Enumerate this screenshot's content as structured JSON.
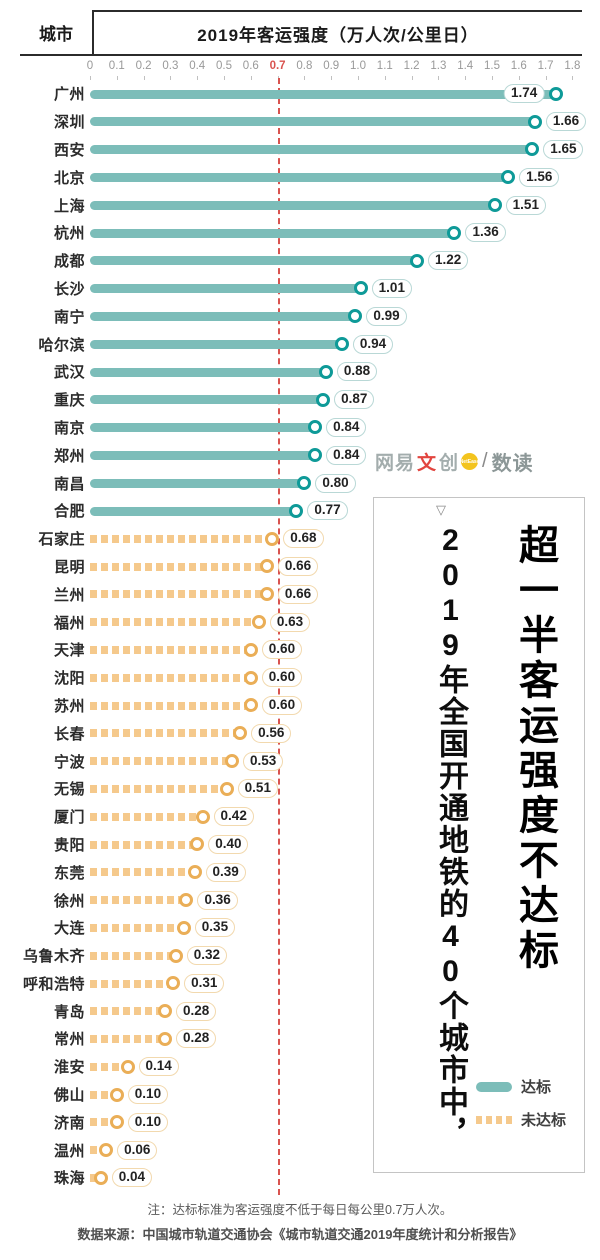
{
  "header": {
    "city_col": "城市",
    "title": "2019年客运强度（万人次/公里日）"
  },
  "axis": {
    "ticks": [
      "0",
      "0.1",
      "0.2",
      "0.3",
      "0.4",
      "0.5",
      "0.6",
      "0.7",
      "0.8",
      "0.9",
      "1.0",
      "1.1",
      "1.2",
      "1.3",
      "1.4",
      "1.5",
      "1.6",
      "1.7",
      "1.8"
    ],
    "threshold_tick": "0.7"
  },
  "chart_data": {
    "type": "bar",
    "orientation": "horizontal",
    "title": "2019年客运强度（万人次/公里日）",
    "xlim": [
      0,
      1.8
    ],
    "threshold": 0.7,
    "grid": false,
    "legend_position": "bottom-right",
    "categories": [
      "广州",
      "深圳",
      "西安",
      "北京",
      "上海",
      "杭州",
      "成都",
      "长沙",
      "南宁",
      "哈尔滨",
      "武汉",
      "重庆",
      "南京",
      "郑州",
      "南昌",
      "合肥",
      "石家庄",
      "昆明",
      "兰州",
      "福州",
      "天津",
      "沈阳",
      "苏州",
      "长春",
      "宁波",
      "无锡",
      "厦门",
      "贵阳",
      "东莞",
      "徐州",
      "大连",
      "乌鲁木齐",
      "呼和浩特",
      "青岛",
      "常州",
      "淮安",
      "佛山",
      "济南",
      "温州",
      "珠海"
    ],
    "values": [
      1.74,
      1.66,
      1.65,
      1.56,
      1.51,
      1.36,
      1.22,
      1.01,
      0.99,
      0.94,
      0.88,
      0.87,
      0.84,
      0.84,
      0.8,
      0.77,
      0.68,
      0.66,
      0.66,
      0.63,
      0.6,
      0.6,
      0.6,
      0.56,
      0.53,
      0.51,
      0.42,
      0.4,
      0.39,
      0.36,
      0.35,
      0.32,
      0.31,
      0.28,
      0.28,
      0.14,
      0.1,
      0.1,
      0.06,
      0.04
    ],
    "legend": [
      {
        "label": "达标",
        "met": true
      },
      {
        "label": "未达标",
        "met": false
      }
    ]
  },
  "colors": {
    "met_bar": "#7cbdb9",
    "met_ring": "#0e9a98",
    "unmet_bar": "#f5c98c",
    "unmet_ring": "#eaae57",
    "threshold": "#d9534f",
    "badge_yellow": "#f3c41e",
    "met_badge_border": "#b9d8d6",
    "unmet_badge_border": "#f2d9ae"
  },
  "panel": {
    "triangle": "▽",
    "headline": "超一半客运强度不达标",
    "subline": "2019年全国开通地铁的40个城市中，"
  },
  "legend": {
    "met": "达标",
    "unmet": "未达标"
  },
  "watermark": {
    "brand_prefix": "网易",
    "brand_highlight": "文",
    "brand_suffix": "创",
    "badge": "NetEase",
    "divider": "/",
    "product": "数读"
  },
  "footer": {
    "note": "注：达标标准为客运强度不低于每日每公里0.7万人次。",
    "source": "数据来源：中国城市轨道交通协会《城市轨道交通2019年度统计和分析报告》"
  }
}
